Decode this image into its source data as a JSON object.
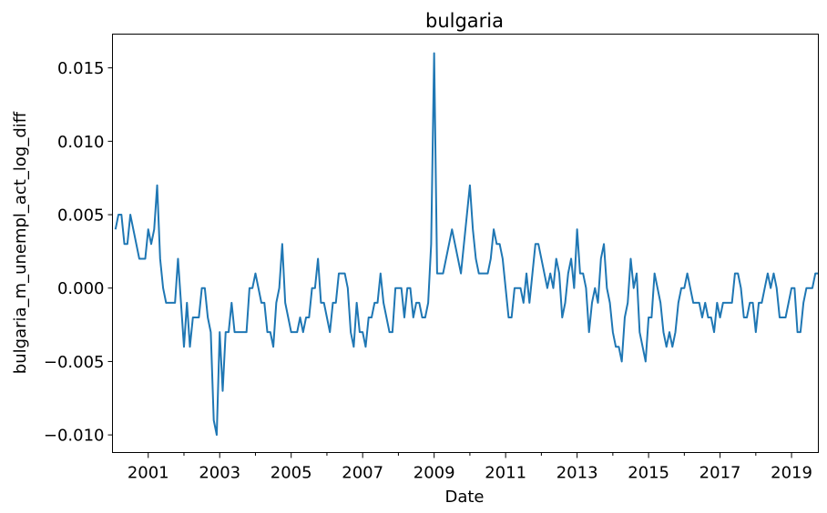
{
  "chart_data": {
    "type": "line",
    "title": "bulgaria",
    "xlabel": "Date",
    "ylabel": "bulgaria_m_unempl_act_log_diff",
    "x_start": "2000-02",
    "x_end": "2019-10",
    "xlim": [
      "2000-01",
      "2019-10"
    ],
    "ylim": [
      -0.0112,
      0.0173
    ],
    "x_major_ticks": [
      "2001",
      "2003",
      "2005",
      "2007",
      "2009",
      "2011",
      "2013",
      "2015",
      "2017",
      "2019"
    ],
    "y_ticks": [
      -0.01,
      -0.005,
      0.0,
      0.005,
      0.01,
      0.015
    ],
    "y_tick_labels": [
      "−0.010",
      "−0.005",
      "0.000",
      "0.005",
      "0.010",
      "0.015"
    ],
    "grid": false,
    "line_color": "#1f77b4",
    "series": [
      {
        "values": [
          0.004,
          0.005,
          0.005,
          0.003,
          0.003,
          0.005,
          0.004,
          0.003,
          0.002,
          0.002,
          0.002,
          0.004,
          0.003,
          0.004,
          0.007,
          0.002,
          0.0,
          -0.001,
          -0.001,
          -0.001,
          -0.001,
          0.002,
          -0.001,
          -0.004,
          -0.001,
          -0.004,
          -0.002,
          -0.002,
          -0.002,
          0.0,
          0.0,
          -0.002,
          -0.003,
          -0.009,
          -0.01,
          -0.003,
          -0.007,
          -0.003,
          -0.003,
          -0.001,
          -0.003,
          -0.003,
          -0.003,
          -0.003,
          -0.003,
          0.0,
          0.0,
          0.001,
          0.0,
          -0.001,
          -0.001,
          -0.003,
          -0.003,
          -0.004,
          -0.001,
          0.0,
          0.003,
          -0.001,
          -0.002,
          -0.003,
          -0.003,
          -0.003,
          -0.002,
          -0.003,
          -0.002,
          -0.002,
          0.0,
          0.0,
          0.002,
          -0.001,
          -0.001,
          -0.002,
          -0.003,
          -0.001,
          -0.001,
          0.001,
          0.001,
          0.001,
          0.0,
          -0.003,
          -0.004,
          -0.001,
          -0.003,
          -0.003,
          -0.004,
          -0.002,
          -0.002,
          -0.001,
          -0.001,
          0.001,
          -0.001,
          -0.002,
          -0.003,
          -0.003,
          0.0,
          0.0,
          0.0,
          -0.002,
          0.0,
          0.0,
          -0.002,
          -0.001,
          -0.001,
          -0.002,
          -0.002,
          -0.001,
          0.003,
          0.016,
          0.001,
          0.001,
          0.001,
          0.002,
          0.003,
          0.004,
          0.003,
          0.002,
          0.001,
          0.003,
          0.005,
          0.007,
          0.004,
          0.002,
          0.001,
          0.001,
          0.001,
          0.001,
          0.002,
          0.004,
          0.003,
          0.003,
          0.002,
          0.0,
          -0.002,
          -0.002,
          0.0,
          0.0,
          0.0,
          -0.001,
          0.001,
          -0.001,
          0.001,
          0.003,
          0.003,
          0.002,
          0.001,
          0.0,
          0.001,
          0.0,
          0.002,
          0.001,
          -0.002,
          -0.001,
          0.001,
          0.002,
          0.0,
          0.004,
          0.001,
          0.001,
          0.0,
          -0.003,
          -0.001,
          0.0,
          -0.001,
          0.002,
          0.003,
          0.0,
          -0.001,
          -0.003,
          -0.004,
          -0.004,
          -0.005,
          -0.002,
          -0.001,
          0.002,
          0.0,
          0.001,
          -0.003,
          -0.004,
          -0.005,
          -0.002,
          -0.002,
          0.001,
          0.0,
          -0.001,
          -0.003,
          -0.004,
          -0.003,
          -0.004,
          -0.003,
          -0.001,
          0.0,
          0.0,
          0.001,
          0.0,
          -0.001,
          -0.001,
          -0.001,
          -0.002,
          -0.001,
          -0.002,
          -0.002,
          -0.003,
          -0.001,
          -0.002,
          -0.001,
          -0.001,
          -0.001,
          -0.001,
          0.001,
          0.001,
          0.0,
          -0.002,
          -0.002,
          -0.001,
          -0.001,
          -0.003,
          -0.001,
          -0.001,
          0.0,
          0.001,
          0.0,
          0.001,
          0.0,
          -0.002,
          -0.002,
          -0.002,
          -0.001,
          0.0,
          0.0,
          -0.003,
          -0.003,
          -0.001,
          0.0,
          0.0,
          0.0,
          0.001,
          0.001
        ]
      }
    ]
  }
}
